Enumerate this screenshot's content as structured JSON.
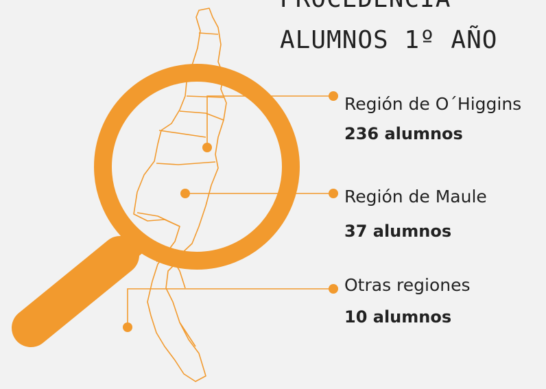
{
  "header": {
    "title": [
      "PROCEDENCIA",
      "ALUMNOS 1º AÑO"
    ]
  },
  "items": [
    {
      "region": "Región de O´Higgins",
      "count": "236 alumnos"
    },
    {
      "region": "Región de Maule",
      "count": "37 alumnos"
    },
    {
      "region": "Otras regiones",
      "count": "10 alumnos"
    }
  ]
}
